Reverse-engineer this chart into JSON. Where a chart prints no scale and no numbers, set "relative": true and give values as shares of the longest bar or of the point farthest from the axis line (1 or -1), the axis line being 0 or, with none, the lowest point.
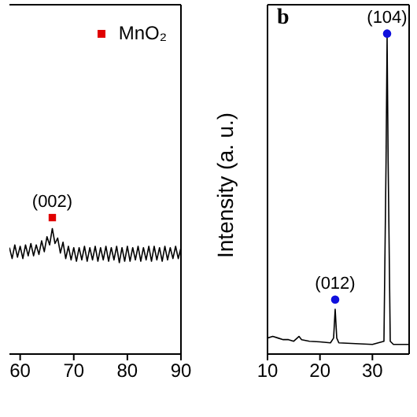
{
  "chart_data": [
    {
      "type": "line",
      "relative": true,
      "xlim": [
        58,
        90
      ],
      "xticks": [
        60,
        70,
        80,
        90
      ],
      "tick_labels": "x",
      "legend": "top right",
      "series": [
        {
          "color": "#000000",
          "x": [
            58,
            58.5,
            59,
            59.5,
            60,
            60.5,
            61,
            61.5,
            62,
            62.5,
            63,
            63.5,
            64,
            64.5,
            65,
            65.5,
            66,
            66.5,
            67,
            67.5,
            68,
            68.5,
            69,
            69.5,
            70,
            70.5,
            71,
            71.5,
            72,
            72.5,
            73,
            73.5,
            74,
            74.5,
            75,
            75.5,
            76,
            76.5,
            77,
            77.5,
            78,
            78.5,
            79,
            79.5,
            80,
            80.5,
            81,
            81.5,
            82,
            82.5,
            83,
            83.5,
            84,
            84.5,
            85,
            85.5,
            86,
            86.5,
            87,
            87.5,
            88,
            88.5,
            89,
            89.5,
            90
          ],
          "values": [
            0.78,
            0.7,
            0.8,
            0.71,
            0.79,
            0.7,
            0.8,
            0.72,
            0.81,
            0.72,
            0.8,
            0.73,
            0.83,
            0.75,
            0.86,
            0.8,
            0.92,
            0.81,
            0.85,
            0.74,
            0.82,
            0.7,
            0.79,
            0.69,
            0.78,
            0.68,
            0.78,
            0.69,
            0.79,
            0.68,
            0.78,
            0.69,
            0.79,
            0.68,
            0.78,
            0.69,
            0.79,
            0.68,
            0.78,
            0.69,
            0.79,
            0.67,
            0.78,
            0.68,
            0.79,
            0.68,
            0.78,
            0.69,
            0.79,
            0.68,
            0.78,
            0.69,
            0.79,
            0.68,
            0.79,
            0.69,
            0.78,
            0.68,
            0.79,
            0.69,
            0.78,
            0.7,
            0.79,
            0.7,
            0.78
          ]
        },
        {
          "type": "scatter",
          "name": "MnO₂",
          "color": "#e00000",
          "marker": "square",
          "x": [
            66
          ],
          "values": [
            1
          ]
        }
      ],
      "annotations": [
        {
          "text": "(002)",
          "x": 66,
          "y": 1
        }
      ]
    },
    {
      "type": "line",
      "relative": true,
      "xlim": [
        10,
        37
      ],
      "xticks": [
        10,
        20,
        30
      ],
      "tick_labels": "x",
      "ylabel": "Intensity (a. u.)",
      "legend": false,
      "series": [
        {
          "color": "#000000",
          "x": [
            10,
            11,
            12,
            13,
            14,
            15,
            16,
            16.5,
            18,
            20,
            22,
            22.6,
            22.9,
            23.2,
            23.6,
            26,
            30,
            32.2,
            32.6,
            32.8,
            33,
            33.4,
            34,
            37
          ],
          "values": [
            0.05,
            0.055,
            0.05,
            0.045,
            0.045,
            0.04,
            0.055,
            0.045,
            0.04,
            0.038,
            0.035,
            0.05,
            0.14,
            0.05,
            0.035,
            0.033,
            0.03,
            0.04,
            0.6,
            0.99,
            0.6,
            0.04,
            0.03,
            0.03
          ]
        },
        {
          "type": "scatter",
          "color": "#1010dd",
          "marker": "circle",
          "x": [
            22.9,
            32.8
          ],
          "values": [
            0.17,
            1
          ]
        }
      ],
      "annotations": [
        "b",
        {
          "text": "(012)",
          "x": 22.9,
          "y": 0.17
        },
        {
          "text": "(104)",
          "x": 32.8,
          "y": 1
        }
      ]
    }
  ]
}
